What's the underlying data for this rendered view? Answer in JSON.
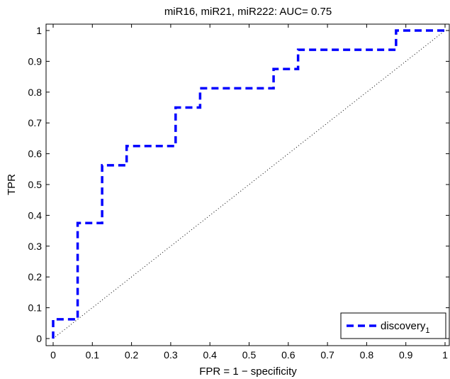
{
  "chart_data": {
    "type": "line",
    "title": "miR16, miR21, miR222: AUC= 0.75",
    "xlabel": "FPR = 1 − specificity",
    "ylabel": "TPR",
    "xlim": [
      0,
      1
    ],
    "ylim": [
      0,
      1
    ],
    "x_ticks": [
      "0",
      "0.1",
      "0.2",
      "0.3",
      "0.4",
      "0.5",
      "0.6",
      "0.7",
      "0.8",
      "0.9",
      "1"
    ],
    "y_ticks": [
      "0",
      "0.1",
      "0.2",
      "0.3",
      "0.4",
      "0.5",
      "0.6",
      "0.7",
      "0.8",
      "0.9",
      "1"
    ],
    "grid": false,
    "legend_position": "bottom-right",
    "reference_line": {
      "style": "dotted",
      "color": "#000000",
      "x": [
        0,
        1
      ],
      "y": [
        0,
        1
      ]
    },
    "series": [
      {
        "name": "discovery",
        "name_subscript": "1",
        "color": "#0000ff",
        "style": "dashed",
        "x": [
          0,
          0,
          0.0625,
          0.0625,
          0.125,
          0.125,
          0.1875,
          0.1875,
          0.3125,
          0.3125,
          0.375,
          0.375,
          0.5625,
          0.5625,
          0.625,
          0.625,
          0.875,
          0.875,
          1
        ],
        "y": [
          0,
          0.0625,
          0.0625,
          0.375,
          0.375,
          0.5625,
          0.5625,
          0.625,
          0.625,
          0.75,
          0.75,
          0.8125,
          0.8125,
          0.875,
          0.875,
          0.9375,
          0.9375,
          1,
          1
        ]
      }
    ]
  }
}
